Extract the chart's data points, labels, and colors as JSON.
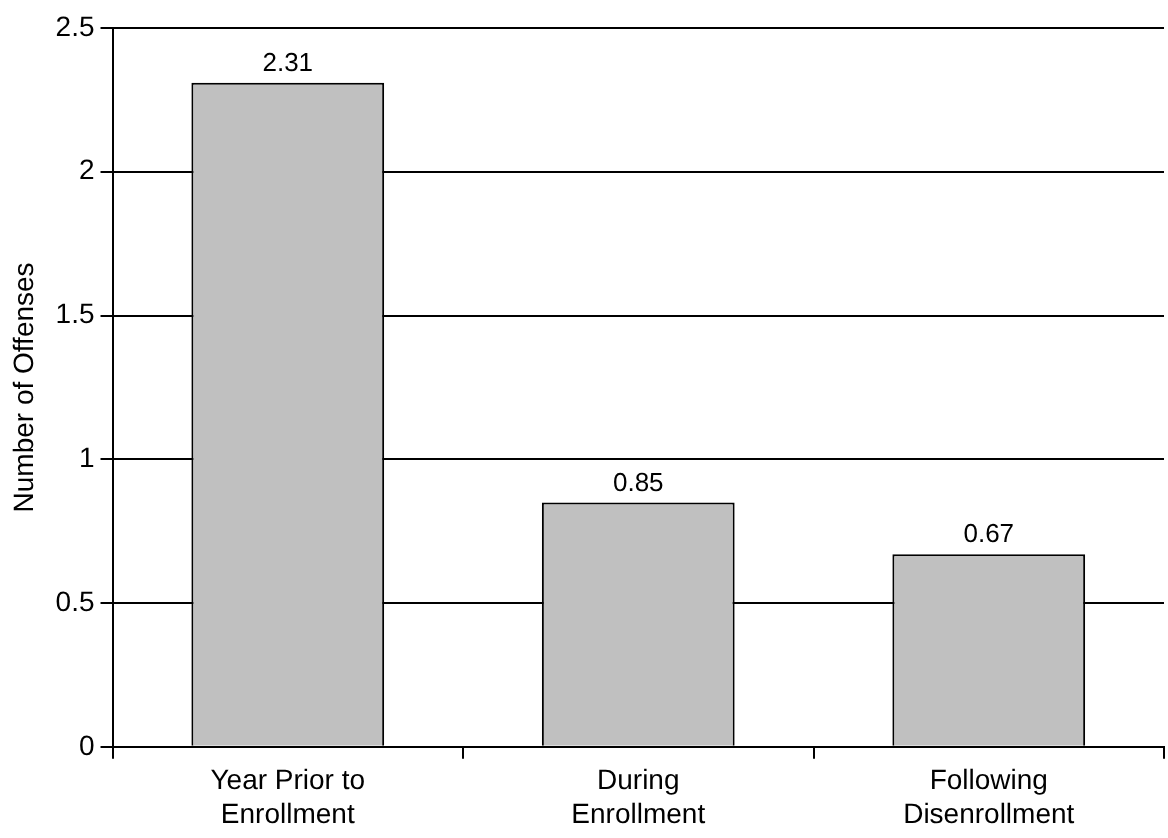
{
  "chart_data": {
    "type": "bar",
    "ylabel": "Number of Offenses",
    "categories": [
      "Year Prior to Enrollment",
      "During Enrollment",
      "Following Disenrollment"
    ],
    "values": [
      2.31,
      0.85,
      0.67
    ],
    "color": "#c0c0c0",
    "ylim": [
      0,
      2.5
    ],
    "yticks": [
      0,
      0.5,
      1,
      1.5,
      2,
      2.5
    ],
    "grid": "y",
    "legend": false,
    "data_labels": true
  }
}
